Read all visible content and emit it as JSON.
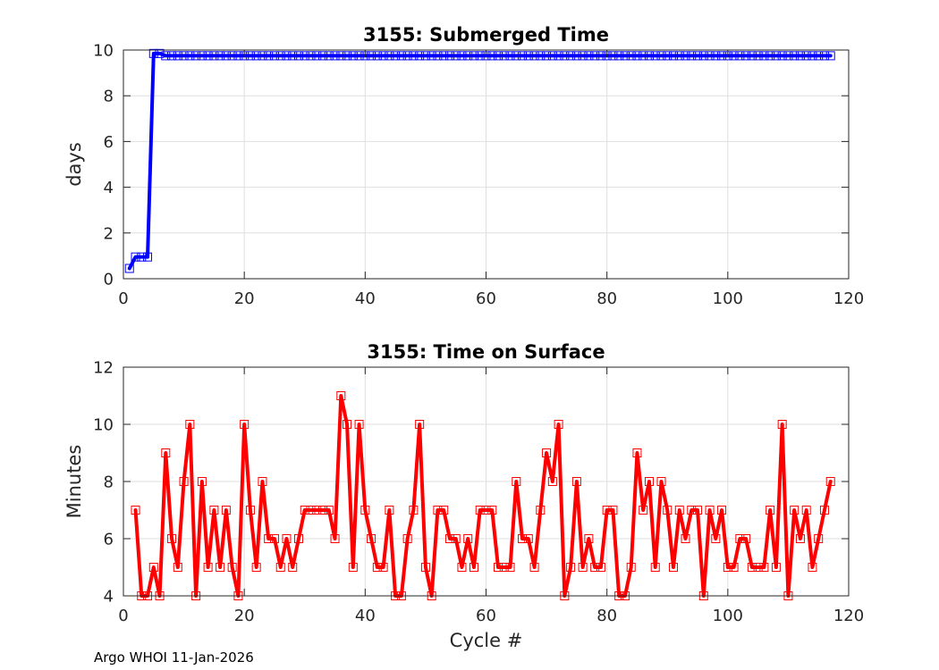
{
  "chart_data": [
    {
      "type": "line",
      "title": "3155: Submerged Time",
      "xlabel": "",
      "ylabel": "days",
      "xlim": [
        0,
        120
      ],
      "ylim": [
        0,
        10
      ],
      "xticks": [
        0,
        20,
        40,
        60,
        80,
        100,
        120
      ],
      "yticks": [
        0,
        2,
        4,
        6,
        8,
        10
      ],
      "grid": true,
      "color": "#0000ff",
      "marker": "square",
      "x": [
        1,
        2,
        3,
        4,
        5,
        6,
        7,
        8,
        9,
        10,
        11,
        12,
        13,
        14,
        15,
        16,
        17,
        18,
        19,
        20,
        21,
        22,
        23,
        24,
        25,
        26,
        27,
        28,
        29,
        30,
        31,
        32,
        33,
        34,
        35,
        36,
        37,
        38,
        39,
        40,
        41,
        42,
        43,
        44,
        45,
        46,
        47,
        48,
        49,
        50,
        51,
        52,
        53,
        54,
        55,
        56,
        57,
        58,
        59,
        60,
        61,
        62,
        63,
        64,
        65,
        66,
        67,
        68,
        69,
        70,
        71,
        72,
        73,
        74,
        75,
        76,
        77,
        78,
        79,
        80,
        81,
        82,
        83,
        84,
        85,
        86,
        87,
        88,
        89,
        90,
        91,
        92,
        93,
        94,
        95,
        96,
        97,
        98,
        99,
        100,
        101,
        102,
        103,
        104,
        105,
        106,
        107,
        108,
        109,
        110,
        111,
        112,
        113,
        114,
        115,
        116,
        117
      ],
      "y": [
        0.45,
        0.95,
        0.95,
        0.95,
        9.85,
        9.85,
        9.75,
        9.75,
        9.75,
        9.75,
        9.75,
        9.75,
        9.75,
        9.75,
        9.75,
        9.75,
        9.75,
        9.75,
        9.75,
        9.75,
        9.75,
        9.75,
        9.75,
        9.75,
        9.75,
        9.75,
        9.75,
        9.75,
        9.75,
        9.75,
        9.75,
        9.75,
        9.75,
        9.75,
        9.75,
        9.75,
        9.75,
        9.75,
        9.75,
        9.75,
        9.75,
        9.75,
        9.75,
        9.75,
        9.75,
        9.75,
        9.75,
        9.75,
        9.75,
        9.75,
        9.75,
        9.75,
        9.75,
        9.75,
        9.75,
        9.75,
        9.75,
        9.75,
        9.75,
        9.75,
        9.75,
        9.75,
        9.75,
        9.75,
        9.75,
        9.75,
        9.75,
        9.75,
        9.75,
        9.75,
        9.75,
        9.75,
        9.75,
        9.75,
        9.75,
        9.75,
        9.75,
        9.75,
        9.75,
        9.75,
        9.75,
        9.75,
        9.75,
        9.75,
        9.75,
        9.75,
        9.75,
        9.75,
        9.75,
        9.75,
        9.75,
        9.75,
        9.75,
        9.75,
        9.75,
        9.75,
        9.75,
        9.75,
        9.75,
        9.75,
        9.75,
        9.75,
        9.75,
        9.75,
        9.75,
        9.75,
        9.75,
        9.75,
        9.75,
        9.75,
        9.75,
        9.75,
        9.75,
        9.75,
        9.75,
        9.75,
        9.75
      ]
    },
    {
      "type": "line",
      "title": "3155: Time on Surface",
      "xlabel": "Cycle #",
      "ylabel": "Minutes",
      "xlim": [
        0,
        120
      ],
      "ylim": [
        4,
        12
      ],
      "xticks": [
        0,
        20,
        40,
        60,
        80,
        100,
        120
      ],
      "yticks": [
        4,
        6,
        8,
        10,
        12
      ],
      "grid": true,
      "color": "#ff0000",
      "marker": "square",
      "x": [
        2,
        3,
        4,
        5,
        6,
        7,
        8,
        9,
        10,
        11,
        12,
        13,
        14,
        15,
        16,
        17,
        18,
        19,
        20,
        21,
        22,
        23,
        24,
        25,
        26,
        27,
        28,
        29,
        30,
        31,
        32,
        33,
        34,
        35,
        36,
        37,
        38,
        39,
        40,
        41,
        42,
        43,
        44,
        45,
        46,
        47,
        48,
        49,
        50,
        51,
        52,
        53,
        54,
        55,
        56,
        57,
        58,
        59,
        60,
        61,
        62,
        63,
        64,
        65,
        66,
        67,
        68,
        69,
        70,
        71,
        72,
        73,
        74,
        75,
        76,
        77,
        78,
        79,
        80,
        81,
        82,
        83,
        84,
        85,
        86,
        87,
        88,
        89,
        90,
        91,
        92,
        93,
        94,
        95,
        96,
        97,
        98,
        99,
        100,
        101,
        102,
        103,
        104,
        105,
        106,
        107,
        108,
        109,
        110,
        111,
        112,
        113,
        114,
        115,
        116,
        117
      ],
      "y": [
        7,
        4,
        4,
        5,
        4,
        9,
        6,
        5,
        8,
        10,
        4,
        8,
        5,
        7,
        5,
        7,
        5,
        4,
        10,
        7,
        5,
        8,
        6,
        6,
        5,
        6,
        5,
        6,
        7,
        7,
        7,
        7,
        7,
        6,
        11,
        10,
        5,
        10,
        7,
        6,
        5,
        5,
        7,
        4,
        4,
        6,
        7,
        10,
        5,
        4,
        7,
        7,
        6,
        6,
        5,
        6,
        5,
        7,
        7,
        7,
        5,
        5,
        5,
        8,
        6,
        6,
        5,
        7,
        9,
        8,
        10,
        4,
        5,
        8,
        5,
        6,
        5,
        5,
        7,
        7,
        4,
        4,
        5,
        9,
        7,
        8,
        5,
        8,
        7,
        5,
        7,
        6,
        7,
        7,
        4,
        7,
        6,
        7,
        5,
        5,
        6,
        6,
        5,
        5,
        5,
        7,
        5,
        10,
        4,
        7,
        6,
        7,
        5,
        6,
        7,
        8
      ]
    }
  ],
  "footer": "Argo WHOI 11-Jan-2026"
}
